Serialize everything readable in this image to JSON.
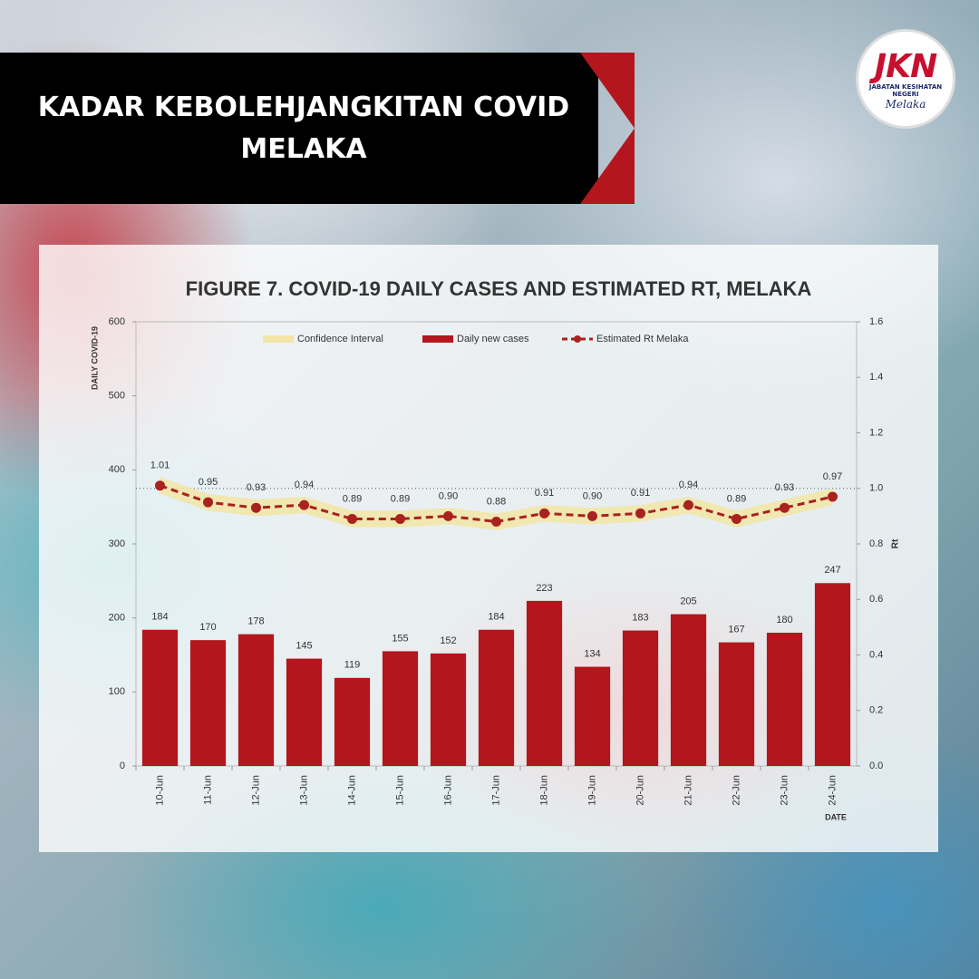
{
  "header": {
    "title": "KADAR KEBOLEHJANGKITAN COVID MELAKA"
  },
  "logo": {
    "mark": "JKN",
    "name": "JABATAN KESIHATAN NEGERI",
    "state": "Melaka"
  },
  "chart_data": {
    "type": "bar",
    "title": "FIGURE 7. COVID-19 DAILY CASES AND ESTIMATED RT, MELAKA",
    "y_label": "DAILY COVID-19",
    "y2_label": "Rt",
    "x_label": "DATE",
    "categories": [
      "10-Jun",
      "11-Jun",
      "12-Jun",
      "13-Jun",
      "14-Jun",
      "15-Jun",
      "16-Jun",
      "17-Jun",
      "18-Jun",
      "19-Jun",
      "20-Jun",
      "21-Jun",
      "22-Jun",
      "23-Jun",
      "24-Jun"
    ],
    "series": [
      {
        "name": "Confidence Interval",
        "type": "band",
        "axis": "y2",
        "color": "#f2e5a6",
        "lower": [
          0.98,
          0.92,
          0.9,
          0.91,
          0.86,
          0.86,
          0.87,
          0.85,
          0.88,
          0.87,
          0.88,
          0.91,
          0.86,
          0.9,
          0.94
        ],
        "upper": [
          1.04,
          0.98,
          0.96,
          0.97,
          0.92,
          0.92,
          0.93,
          0.91,
          0.94,
          0.93,
          0.94,
          0.97,
          0.92,
          0.96,
          1.0
        ]
      },
      {
        "name": "Daily new cases",
        "type": "bar",
        "color": "#b3161c",
        "values": [
          184,
          170,
          178,
          145,
          119,
          155,
          152,
          184,
          223,
          134,
          183,
          205,
          167,
          180,
          247
        ]
      },
      {
        "name": "Estimated Rt Melaka",
        "type": "line",
        "axis": "y2",
        "color": "#a8221f",
        "values": [
          1.01,
          0.95,
          0.93,
          0.94,
          0.89,
          0.89,
          0.9,
          0.88,
          0.91,
          0.9,
          0.91,
          0.94,
          0.89,
          0.93,
          0.97
        ],
        "value_labels": [
          "1.01",
          "0.95",
          "0.93",
          "0.94",
          "0.89",
          "0.89",
          "0.90",
          "0.88",
          "0.91",
          "0.90",
          "0.91",
          "0.94",
          "0.89",
          "0.93",
          "0.97"
        ]
      }
    ],
    "ylim": [
      0,
      600
    ],
    "yticks": [
      0,
      100,
      200,
      300,
      400,
      500,
      600
    ],
    "y2lim": [
      0,
      1.6
    ],
    "y2ticks": [
      {
        "value": 0,
        "label": "0.0"
      },
      0.2,
      0.4,
      0.6,
      0.8,
      {
        "value": 1,
        "label": "1.0"
      },
      1.2,
      1.4,
      1.6
    ],
    "y2_reference": 1,
    "legend": "top"
  }
}
